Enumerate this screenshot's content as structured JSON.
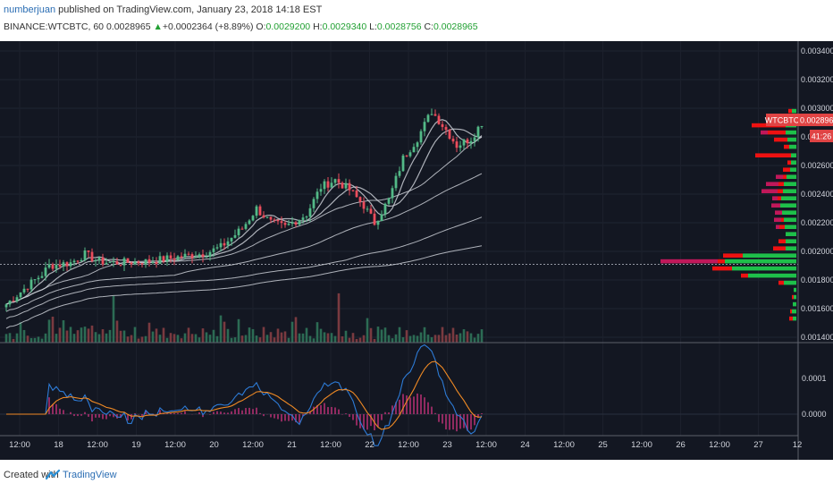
{
  "header": {
    "author": "numberjuan",
    "published": " published on TradingView.com, January 23, 2018 14:18 EST",
    "symbol_line": "BINANCE:WTCBTC, 60",
    "last": "0.0028965",
    "arrow": "▲",
    "change": "+0.0002364 (+8.89%)",
    "o_label": "O:",
    "o": "0.0029200",
    "h_label": "H:",
    "h": "0.0029340",
    "l_label": "L:",
    "l": "0.0028756",
    "c_label": "C:",
    "c": "0.0028965"
  },
  "footer": {
    "created": "Created with",
    "brand": "TradingView"
  },
  "colors": {
    "bg": "#131722",
    "up": "#53b987",
    "down": "#eb4d5c",
    "ma": "#c9cdd4",
    "macd": "#2d7bd6",
    "signal": "#f08a24",
    "hist": "#b03070",
    "vp_up": "#1ec04a",
    "vp_down": "#ee1111",
    "vp_magenta": "#c0185a",
    "price_tag": "#e04444"
  },
  "chart_data": {
    "type": "candlestick",
    "symbol": "WTCBTC",
    "price_tag": "0.0028965",
    "countdown_tag": "41:26",
    "ylim": [
      0.0013,
      0.0035
    ],
    "y_ticks": [
      "0.0034000",
      "0.0032000",
      "0.0030000",
      "0.0028000",
      "0.0026000",
      "0.0024000",
      "0.0022000",
      "0.0020000",
      "0.0018000",
      "0.0016000",
      "0.0014000"
    ],
    "macd_ticks": [
      "0.0001",
      "0.0000"
    ],
    "x_ticks": [
      "12:00",
      "18",
      "12:00",
      "19",
      "12:00",
      "20",
      "12:00",
      "21",
      "12:00",
      "22",
      "12:00",
      "23",
      "12:00",
      "24",
      "12:00",
      "25",
      "12:00",
      "26",
      "12:00",
      "27",
      "12"
    ],
    "close_path": [
      [
        0,
        0.00163
      ],
      [
        6,
        0.00176
      ],
      [
        10,
        0.00184
      ],
      [
        12,
        0.0019
      ],
      [
        18,
        0.00192
      ],
      [
        22,
        0.00198
      ],
      [
        26,
        0.00193
      ],
      [
        30,
        0.00192
      ],
      [
        40,
        0.00193
      ],
      [
        48,
        0.00196
      ],
      [
        56,
        0.00199
      ],
      [
        60,
        0.00203
      ],
      [
        66,
        0.00216
      ],
      [
        70,
        0.0023
      ],
      [
        74,
        0.0022
      ],
      [
        78,
        0.00217
      ],
      [
        84,
        0.00226
      ],
      [
        88,
        0.00245
      ],
      [
        92,
        0.0025
      ],
      [
        96,
        0.00243
      ],
      [
        100,
        0.00232
      ],
      [
        103,
        0.0022
      ],
      [
        107,
        0.00236
      ],
      [
        111,
        0.00265
      ],
      [
        115,
        0.00279
      ],
      [
        119,
        0.00298
      ],
      [
        123,
        0.00285
      ],
      [
        126,
        0.00274
      ],
      [
        130,
        0.00279
      ],
      [
        133,
        0.0029
      ]
    ],
    "horizontal_line": 0.00191,
    "volume_spikes": [
      [
        13,
        0.5
      ],
      [
        30,
        0.9
      ],
      [
        93,
        0.95
      ],
      [
        122,
        0.3
      ]
    ],
    "volume_profile": [
      [
        0.00298,
        5,
        4,
        0
      ],
      [
        0.00293,
        7,
        14,
        0
      ],
      [
        0.00288,
        12,
        38,
        0
      ],
      [
        0.00283,
        12,
        20,
        8
      ],
      [
        0.00278,
        10,
        15,
        0
      ],
      [
        0.00273,
        8,
        6,
        0
      ],
      [
        0.00267,
        6,
        40,
        0
      ],
      [
        0.00262,
        6,
        4,
        0
      ],
      [
        0.00257,
        7,
        8,
        0
      ],
      [
        0.00252,
        11,
        4,
        8
      ],
      [
        0.00247,
        14,
        6,
        14
      ],
      [
        0.00242,
        15,
        6,
        18
      ],
      [
        0.00237,
        17,
        4,
        6
      ],
      [
        0.00232,
        18,
        0,
        10
      ],
      [
        0.00227,
        16,
        0,
        8
      ],
      [
        0.00222,
        14,
        3,
        8
      ],
      [
        0.00217,
        13,
        6,
        4
      ],
      [
        0.00212,
        12,
        0,
        0
      ],
      [
        0.00207,
        12,
        8,
        0
      ],
      [
        0.00202,
        12,
        14,
        0
      ],
      [
        0.00197,
        60,
        22,
        0
      ],
      [
        0.00193,
        80,
        8,
        64
      ],
      [
        0.00188,
        72,
        22,
        0
      ],
      [
        0.00183,
        54,
        8,
        0
      ],
      [
        0.00178,
        14,
        6,
        0
      ],
      [
        0.00173,
        3,
        0,
        0
      ],
      [
        0.00168,
        3,
        2,
        0
      ],
      [
        0.00163,
        4,
        0,
        0
      ],
      [
        0.00158,
        5,
        2,
        0
      ],
      [
        0.00153,
        4,
        4,
        0
      ]
    ]
  }
}
